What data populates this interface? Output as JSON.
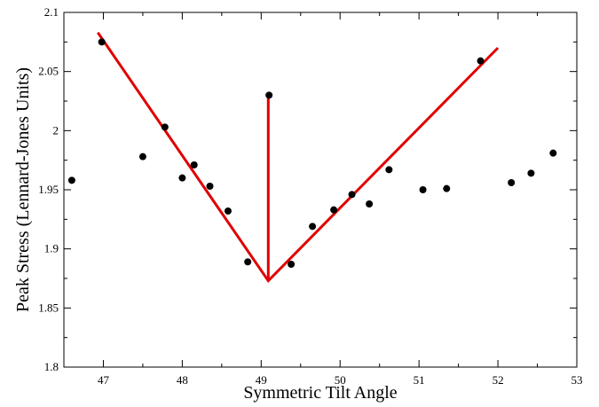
{
  "chart_data": {
    "type": "scatter",
    "title": "",
    "xlabel": "Symmetric Tilt Angle",
    "ylabel": "Peak Stress (Lennard-Jones Units)",
    "xlim": [
      46.5,
      53
    ],
    "ylim": [
      1.8,
      2.1
    ],
    "xticks": [
      "47",
      "48",
      "49",
      "50",
      "51",
      "52",
      "53"
    ],
    "yticks": [
      "1.8",
      "1.85",
      "1.9",
      "1.95",
      "2",
      "2.05",
      "2.1"
    ],
    "grid": false,
    "series": [
      {
        "kind": "points",
        "color": "#000000",
        "points": [
          {
            "x": 46.6,
            "y": 1.958
          },
          {
            "x": 46.98,
            "y": 2.075
          },
          {
            "x": 47.5,
            "y": 1.978
          },
          {
            "x": 47.78,
            "y": 2.003
          },
          {
            "x": 48.0,
            "y": 1.96
          },
          {
            "x": 48.15,
            "y": 1.971
          },
          {
            "x": 48.35,
            "y": 1.953
          },
          {
            "x": 48.58,
            "y": 1.932
          },
          {
            "x": 48.83,
            "y": 1.889
          },
          {
            "x": 49.1,
            "y": 2.03
          },
          {
            "x": 49.38,
            "y": 1.887
          },
          {
            "x": 49.65,
            "y": 1.919
          },
          {
            "x": 49.92,
            "y": 1.933
          },
          {
            "x": 50.15,
            "y": 1.946
          },
          {
            "x": 50.37,
            "y": 1.938
          },
          {
            "x": 50.62,
            "y": 1.967
          },
          {
            "x": 51.05,
            "y": 1.95
          },
          {
            "x": 51.35,
            "y": 1.951
          },
          {
            "x": 51.78,
            "y": 2.059
          },
          {
            "x": 52.17,
            "y": 1.956
          },
          {
            "x": 52.42,
            "y": 1.964
          },
          {
            "x": 52.7,
            "y": 1.981
          }
        ]
      },
      {
        "kind": "line",
        "color": "#e00000",
        "points": [
          {
            "x": 46.93,
            "y": 2.083
          },
          {
            "x": 49.09,
            "y": 1.873
          },
          {
            "x": 52.0,
            "y": 2.07
          }
        ]
      },
      {
        "kind": "line",
        "color": "#e00000",
        "points": [
          {
            "x": 49.09,
            "y": 1.873
          },
          {
            "x": 49.09,
            "y": 2.03
          }
        ]
      }
    ]
  }
}
